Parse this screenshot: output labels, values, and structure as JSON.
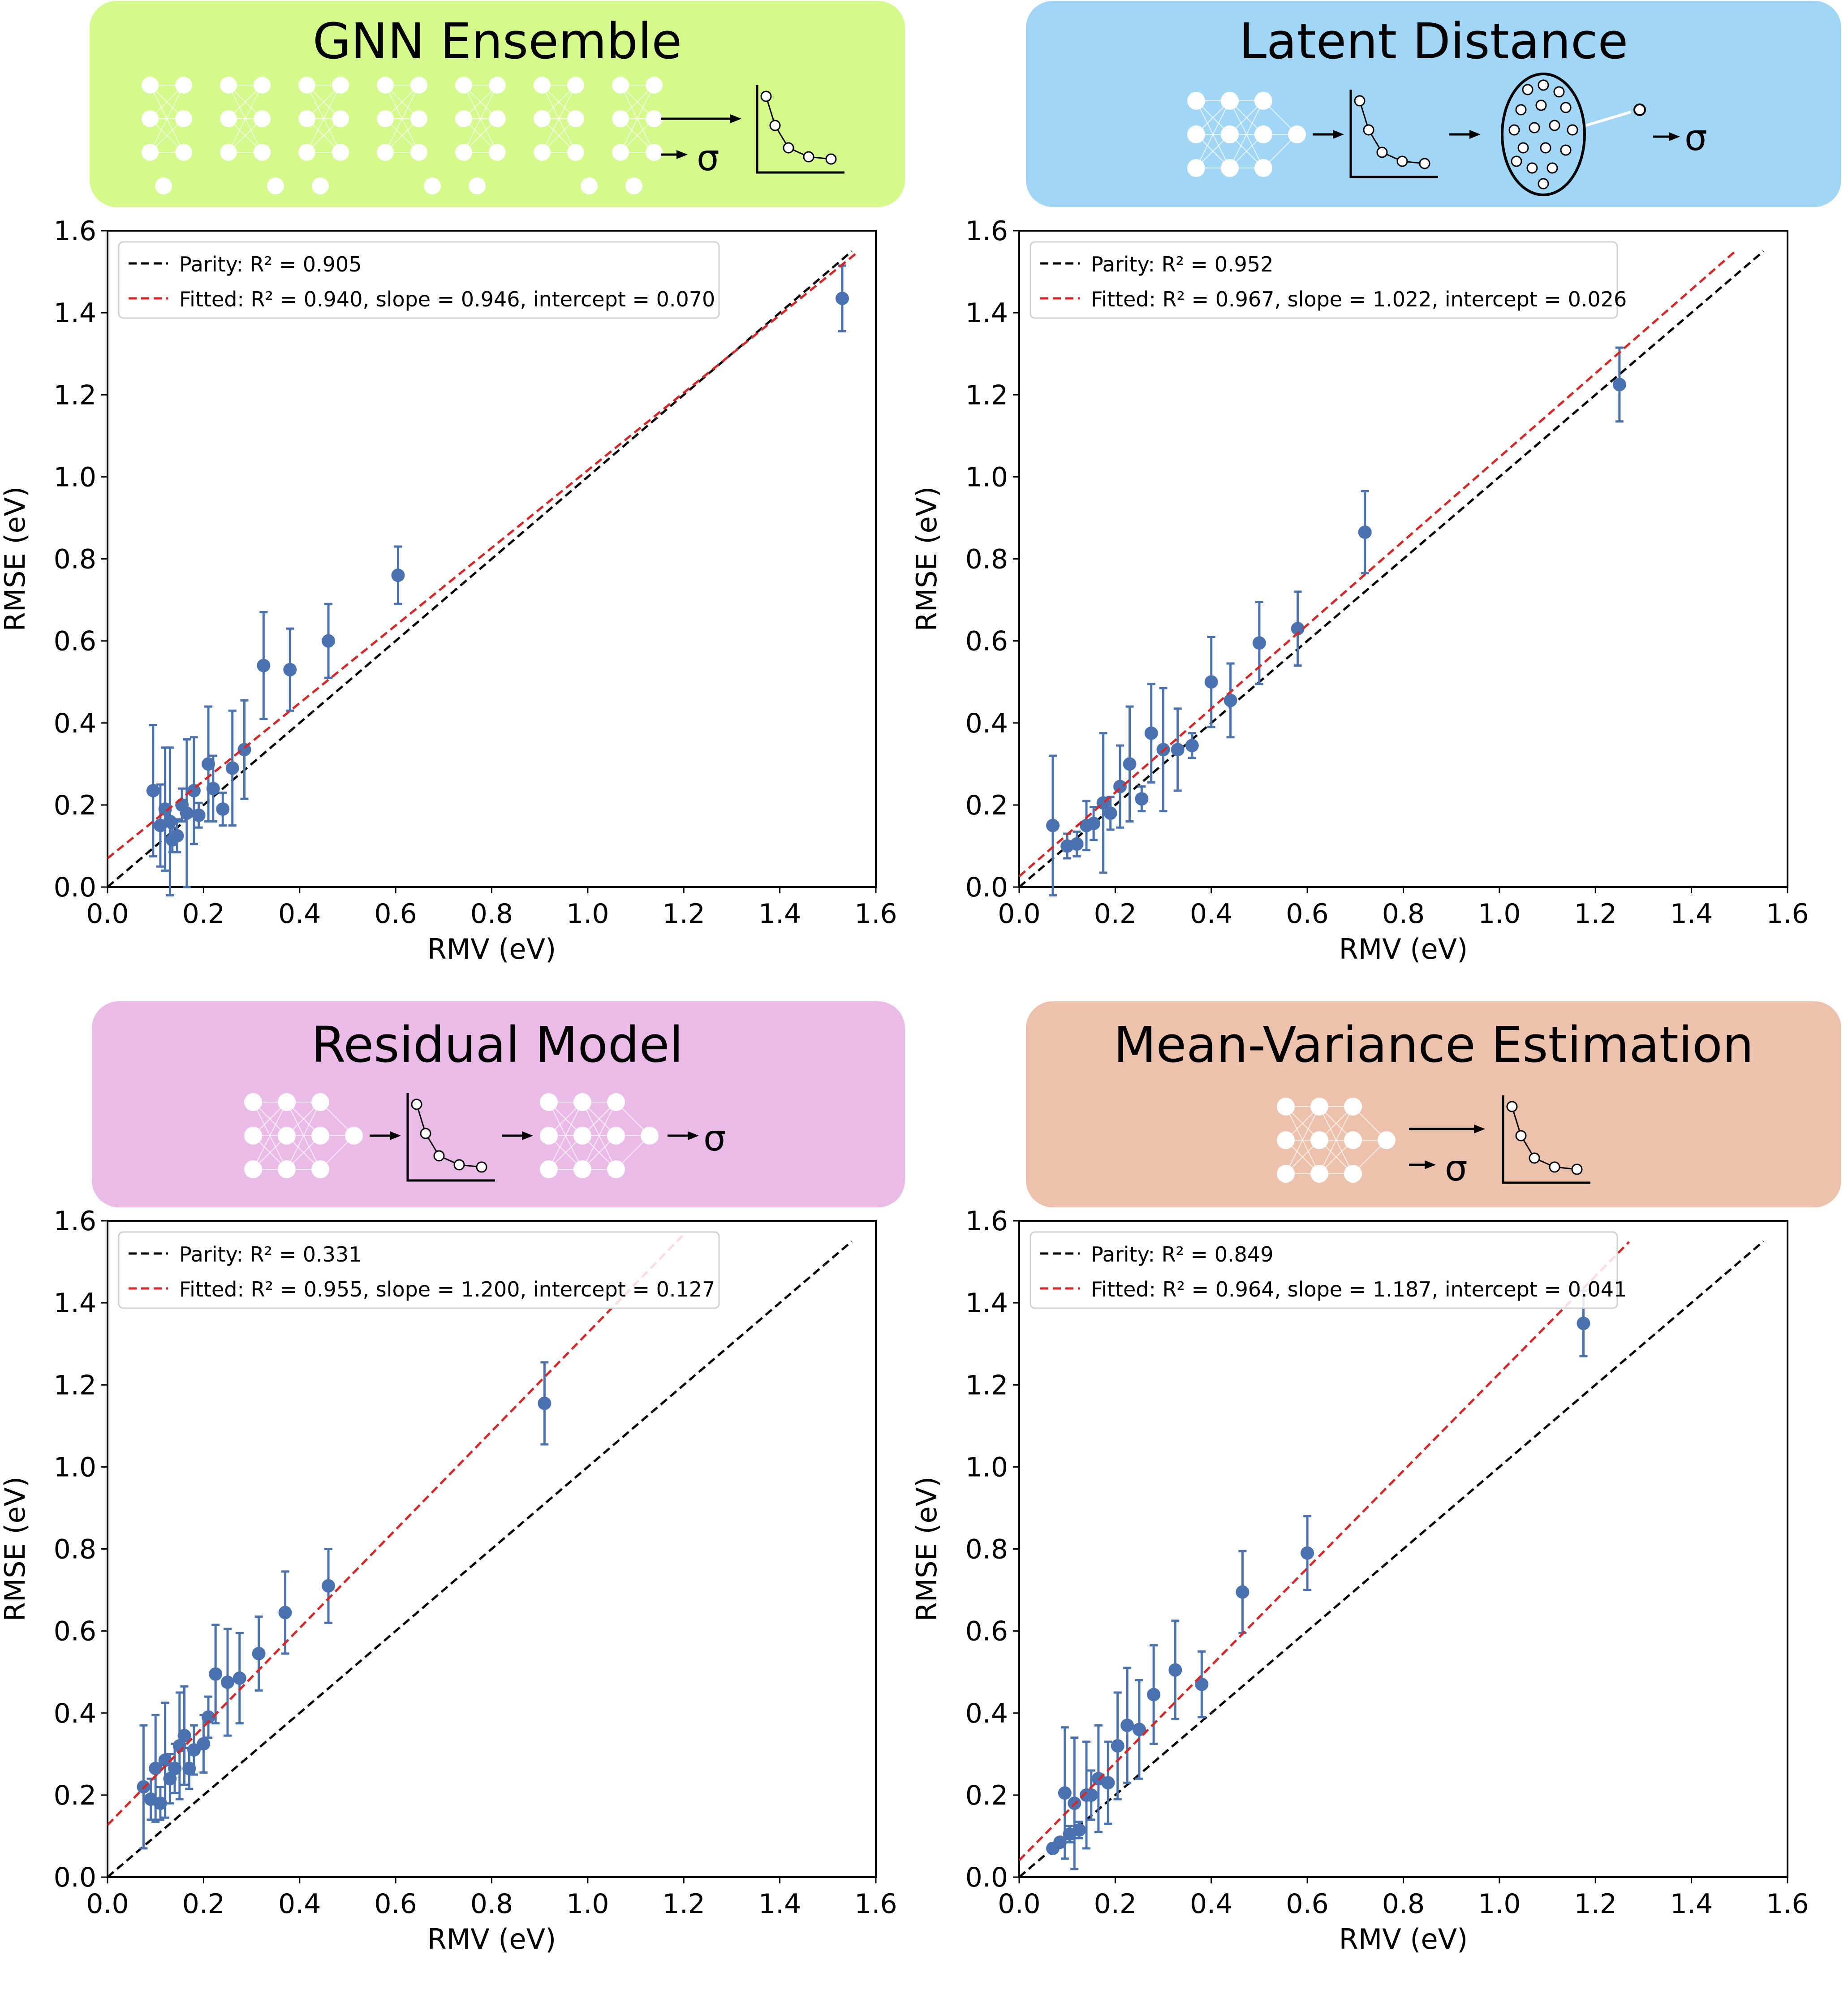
{
  "figure": {
    "background": "#ffffff",
    "point_color": "#4a72b0",
    "parity_color": "#000000",
    "fitted_color": "#d62728"
  },
  "panels": [
    {
      "header": {
        "title": "GNN Ensemble",
        "color": "#d5fa8c",
        "icon": "ensemble-networks-icon",
        "sigma_label": "σ"
      }
    },
    {
      "header": {
        "title": "Latent Distance",
        "color": "#a2d6f5",
        "icon": "latent-distance-icon",
        "sigma_label": "σ"
      }
    },
    {
      "header": {
        "title": "Residual Model",
        "color": "#ebbbe8",
        "icon": "residual-model-icon",
        "sigma_label": "σ"
      }
    },
    {
      "header": {
        "title": "Mean-Variance Estimation",
        "color": "#edc2ad",
        "icon": "mean-variance-icon",
        "sigma_label": "σ"
      }
    }
  ],
  "chart_data": [
    {
      "type": "scatter",
      "title": "GNN Ensemble",
      "xlabel": "RMV (eV)",
      "ylabel": "RMSE (eV)",
      "xlim": [
        0.0,
        1.6
      ],
      "ylim": [
        0.0,
        1.6
      ],
      "xticks": [
        "0.0",
        "0.2",
        "0.4",
        "0.6",
        "0.8",
        "1.0",
        "1.2",
        "1.4",
        "1.6"
      ],
      "yticks": [
        "0.0",
        "0.2",
        "0.4",
        "0.6",
        "0.8",
        "1.0",
        "1.2",
        "1.4",
        "1.6"
      ],
      "legend": {
        "placement": "top-left",
        "parity_label": "Parity: R² = 0.905",
        "fitted_label": "Fitted: R² = 0.940, slope = 0.946, intercept = 0.070"
      },
      "parity": {
        "slope": 1.0,
        "intercept": 0.0,
        "x_end": 1.55
      },
      "fitted": {
        "slope": 0.946,
        "intercept": 0.07,
        "x_end": 1.56
      },
      "points": [
        {
          "x": 0.095,
          "y": 0.235,
          "err": 0.16
        },
        {
          "x": 0.11,
          "y": 0.15,
          "err": 0.1
        },
        {
          "x": 0.12,
          "y": 0.19,
          "err": 0.15
        },
        {
          "x": 0.13,
          "y": 0.16,
          "err": 0.18
        },
        {
          "x": 0.135,
          "y": 0.115,
          "err": 0.03
        },
        {
          "x": 0.145,
          "y": 0.125,
          "err": 0.04
        },
        {
          "x": 0.155,
          "y": 0.2,
          "err": 0.04
        },
        {
          "x": 0.165,
          "y": 0.18,
          "err": 0.18
        },
        {
          "x": 0.18,
          "y": 0.235,
          "err": 0.13
        },
        {
          "x": 0.19,
          "y": 0.175,
          "err": 0.03
        },
        {
          "x": 0.21,
          "y": 0.3,
          "err": 0.14
        },
        {
          "x": 0.22,
          "y": 0.24,
          "err": 0.08
        },
        {
          "x": 0.24,
          "y": 0.19,
          "err": 0.04
        },
        {
          "x": 0.26,
          "y": 0.29,
          "err": 0.14
        },
        {
          "x": 0.285,
          "y": 0.335,
          "err": 0.12
        },
        {
          "x": 0.325,
          "y": 0.54,
          "err": 0.13
        },
        {
          "x": 0.38,
          "y": 0.53,
          "err": 0.1
        },
        {
          "x": 0.46,
          "y": 0.6,
          "err": 0.09
        },
        {
          "x": 0.605,
          "y": 0.76,
          "err": 0.07
        },
        {
          "x": 1.53,
          "y": 1.435,
          "err": 0.08
        }
      ]
    },
    {
      "type": "scatter",
      "title": "Latent Distance",
      "xlabel": "RMV (eV)",
      "ylabel": "RMSE (eV)",
      "xlim": [
        0.0,
        1.6
      ],
      "ylim": [
        0.0,
        1.6
      ],
      "xticks": [
        "0.0",
        "0.2",
        "0.4",
        "0.6",
        "0.8",
        "1.0",
        "1.2",
        "1.4",
        "1.6"
      ],
      "yticks": [
        "0.0",
        "0.2",
        "0.4",
        "0.6",
        "0.8",
        "1.0",
        "1.2",
        "1.4",
        "1.6"
      ],
      "legend": {
        "placement": "top-left",
        "parity_label": "Parity: R² = 0.952",
        "fitted_label": "Fitted: R² = 0.967, slope = 1.022, intercept = 0.026"
      },
      "parity": {
        "slope": 1.0,
        "intercept": 0.0,
        "x_end": 1.55
      },
      "fitted": {
        "slope": 1.022,
        "intercept": 0.026,
        "x_end": 1.49
      },
      "points": [
        {
          "x": 0.07,
          "y": 0.15,
          "err": 0.17
        },
        {
          "x": 0.1,
          "y": 0.1,
          "err": 0.03
        },
        {
          "x": 0.12,
          "y": 0.105,
          "err": 0.03
        },
        {
          "x": 0.14,
          "y": 0.15,
          "err": 0.06
        },
        {
          "x": 0.155,
          "y": 0.155,
          "err": 0.04
        },
        {
          "x": 0.175,
          "y": 0.205,
          "err": 0.17
        },
        {
          "x": 0.19,
          "y": 0.18,
          "err": 0.04
        },
        {
          "x": 0.21,
          "y": 0.245,
          "err": 0.1
        },
        {
          "x": 0.23,
          "y": 0.3,
          "err": 0.14
        },
        {
          "x": 0.255,
          "y": 0.215,
          "err": 0.03
        },
        {
          "x": 0.275,
          "y": 0.375,
          "err": 0.12
        },
        {
          "x": 0.3,
          "y": 0.335,
          "err": 0.15
        },
        {
          "x": 0.33,
          "y": 0.335,
          "err": 0.1
        },
        {
          "x": 0.36,
          "y": 0.345,
          "err": 0.03
        },
        {
          "x": 0.4,
          "y": 0.5,
          "err": 0.11
        },
        {
          "x": 0.44,
          "y": 0.455,
          "err": 0.09
        },
        {
          "x": 0.5,
          "y": 0.595,
          "err": 0.1
        },
        {
          "x": 0.58,
          "y": 0.63,
          "err": 0.09
        },
        {
          "x": 0.72,
          "y": 0.865,
          "err": 0.1
        },
        {
          "x": 1.25,
          "y": 1.225,
          "err": 0.09
        }
      ]
    },
    {
      "type": "scatter",
      "title": "Residual Model",
      "xlabel": "RMV (eV)",
      "ylabel": "RMSE (eV)",
      "xlim": [
        0.0,
        1.6
      ],
      "ylim": [
        0.0,
        1.6
      ],
      "xticks": [
        "0.0",
        "0.2",
        "0.4",
        "0.6",
        "0.8",
        "1.0",
        "1.2",
        "1.4",
        "1.6"
      ],
      "yticks": [
        "0.0",
        "0.2",
        "0.4",
        "0.6",
        "0.8",
        "1.0",
        "1.2",
        "1.4",
        "1.6"
      ],
      "legend": {
        "placement": "top-left",
        "parity_label": "Parity: R² = 0.331",
        "fitted_label": "Fitted: R² = 0.955, slope = 1.200, intercept = 0.127"
      },
      "parity": {
        "slope": 1.0,
        "intercept": 0.0,
        "x_end": 1.55
      },
      "fitted": {
        "slope": 1.2,
        "intercept": 0.127,
        "x_end": 1.2
      },
      "points": [
        {
          "x": 0.075,
          "y": 0.22,
          "err": 0.15
        },
        {
          "x": 0.09,
          "y": 0.19,
          "err": 0.05
        },
        {
          "x": 0.1,
          "y": 0.265,
          "err": 0.13
        },
        {
          "x": 0.11,
          "y": 0.18,
          "err": 0.04
        },
        {
          "x": 0.12,
          "y": 0.285,
          "err": 0.14
        },
        {
          "x": 0.13,
          "y": 0.24,
          "err": 0.06
        },
        {
          "x": 0.14,
          "y": 0.265,
          "err": 0.06
        },
        {
          "x": 0.15,
          "y": 0.32,
          "err": 0.13
        },
        {
          "x": 0.16,
          "y": 0.345,
          "err": 0.12
        },
        {
          "x": 0.17,
          "y": 0.265,
          "err": 0.05
        },
        {
          "x": 0.18,
          "y": 0.31,
          "err": 0.06
        },
        {
          "x": 0.2,
          "y": 0.325,
          "err": 0.07
        },
        {
          "x": 0.21,
          "y": 0.39,
          "err": 0.05
        },
        {
          "x": 0.225,
          "y": 0.495,
          "err": 0.12
        },
        {
          "x": 0.25,
          "y": 0.475,
          "err": 0.13
        },
        {
          "x": 0.275,
          "y": 0.485,
          "err": 0.11
        },
        {
          "x": 0.315,
          "y": 0.545,
          "err": 0.09
        },
        {
          "x": 0.37,
          "y": 0.645,
          "err": 0.1
        },
        {
          "x": 0.46,
          "y": 0.71,
          "err": 0.09
        },
        {
          "x": 0.91,
          "y": 1.155,
          "err": 0.1
        }
      ]
    },
    {
      "type": "scatter",
      "title": "Mean-Variance Estimation",
      "xlabel": "RMV (eV)",
      "ylabel": "RMSE (eV)",
      "xlim": [
        0.0,
        1.6
      ],
      "ylim": [
        0.0,
        1.6
      ],
      "xticks": [
        "0.0",
        "0.2",
        "0.4",
        "0.6",
        "0.8",
        "1.0",
        "1.2",
        "1.4",
        "1.6"
      ],
      "yticks": [
        "0.0",
        "0.2",
        "0.4",
        "0.6",
        "0.8",
        "1.0",
        "1.2",
        "1.4",
        "1.6"
      ],
      "legend": {
        "placement": "top-left",
        "parity_label": "Parity: R² = 0.849",
        "fitted_label": "Fitted: R² = 0.964, slope = 1.187, intercept = 0.041"
      },
      "parity": {
        "slope": 1.0,
        "intercept": 0.0,
        "x_end": 1.55
      },
      "fitted": {
        "slope": 1.187,
        "intercept": 0.041,
        "x_end": 1.27
      },
      "points": [
        {
          "x": 0.07,
          "y": 0.07,
          "err": 0.01
        },
        {
          "x": 0.085,
          "y": 0.085,
          "err": 0.01
        },
        {
          "x": 0.095,
          "y": 0.205,
          "err": 0.16
        },
        {
          "x": 0.105,
          "y": 0.105,
          "err": 0.02
        },
        {
          "x": 0.115,
          "y": 0.18,
          "err": 0.16
        },
        {
          "x": 0.125,
          "y": 0.115,
          "err": 0.02
        },
        {
          "x": 0.14,
          "y": 0.2,
          "err": 0.13
        },
        {
          "x": 0.15,
          "y": 0.2,
          "err": 0.06
        },
        {
          "x": 0.165,
          "y": 0.24,
          "err": 0.13
        },
        {
          "x": 0.185,
          "y": 0.23,
          "err": 0.1
        },
        {
          "x": 0.205,
          "y": 0.32,
          "err": 0.13
        },
        {
          "x": 0.225,
          "y": 0.37,
          "err": 0.14
        },
        {
          "x": 0.25,
          "y": 0.36,
          "err": 0.12
        },
        {
          "x": 0.28,
          "y": 0.445,
          "err": 0.12
        },
        {
          "x": 0.325,
          "y": 0.505,
          "err": 0.12
        },
        {
          "x": 0.38,
          "y": 0.47,
          "err": 0.08
        },
        {
          "x": 0.465,
          "y": 0.695,
          "err": 0.1
        },
        {
          "x": 0.6,
          "y": 0.79,
          "err": 0.09
        },
        {
          "x": 1.175,
          "y": 1.35,
          "err": 0.08
        }
      ]
    }
  ]
}
